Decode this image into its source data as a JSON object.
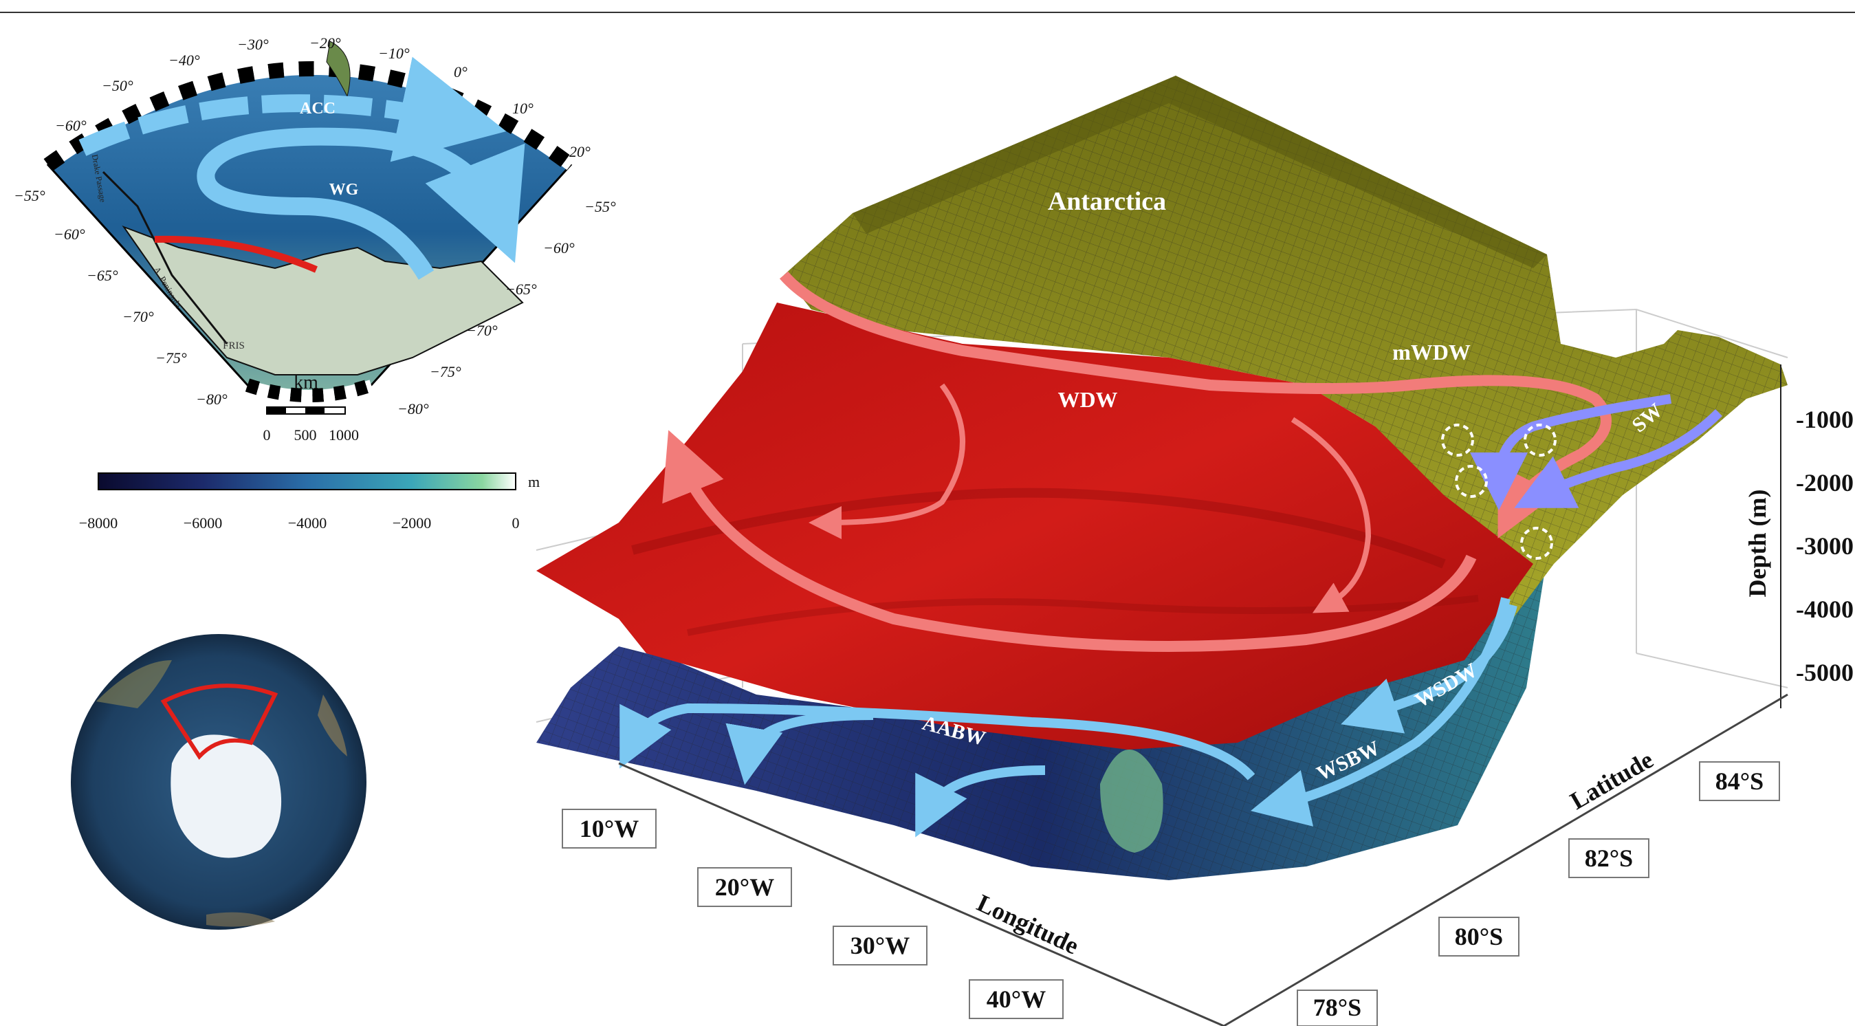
{
  "colors": {
    "warm_water": "#f27c7a",
    "cold_water": "#7cc8f2",
    "shelf_water": "#8a8fff",
    "red_surface": "#c11414",
    "terrain": "#8a8a1e",
    "bottom": "#1d2d66"
  },
  "inset_map": {
    "longitude_labels": [
      "−60°",
      "−50°",
      "−40°",
      "−30°",
      "−20°",
      "−10°",
      "0°",
      "10°",
      "20°"
    ],
    "latitude_labels_left": [
      "−55°",
      "−60°",
      "−65°",
      "−70°",
      "−75°",
      "−80°"
    ],
    "latitude_labels_right": [
      "−55°",
      "−60°",
      "−65°",
      "−70°",
      "−75°",
      "−80°"
    ],
    "feature_labels": {
      "acc": "ACC",
      "wg": "WG",
      "drake": "Drake Passage",
      "peninsula": "A. Peninsula",
      "fris": "FRIS"
    },
    "scale": {
      "unit": "km",
      "ticks": [
        "0",
        "500",
        "1000"
      ]
    },
    "colorbar": {
      "unit": "m",
      "ticks": [
        "−8000",
        "−6000",
        "−4000",
        "−2000",
        "0"
      ]
    }
  },
  "globe": {
    "icon": "globe-south-pole-icon"
  },
  "main_diagram": {
    "region_label": "Antarctica",
    "water_masses": {
      "wdw": "WDW",
      "mwdw": "mWDW",
      "sw": "SW",
      "wsdw": "WSDW",
      "wsbw": "WSBW",
      "aabw": "AABW"
    },
    "longitude_axis": {
      "title": "Longitude",
      "ticks": [
        "10°W",
        "20°W",
        "30°W",
        "40°W"
      ]
    },
    "latitude_axis": {
      "title": "Latitude",
      "ticks": [
        "78°S",
        "80°S",
        "82°S",
        "84°S"
      ]
    },
    "depth_axis": {
      "title": "Depth (m)",
      "ticks": [
        "-1000",
        "-2000",
        "-3000",
        "-4000",
        "-5000"
      ]
    }
  }
}
